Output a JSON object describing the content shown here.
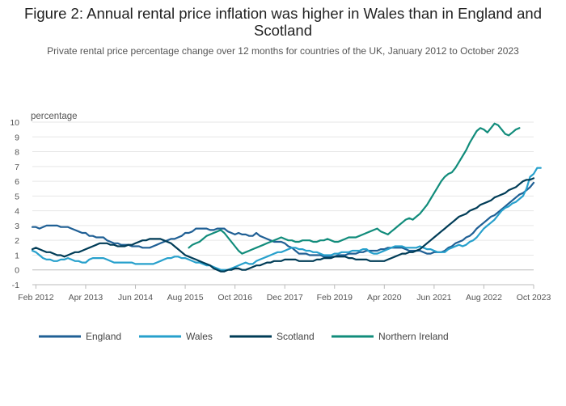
{
  "header": {
    "title": "Figure 2: Annual rental price inflation was higher in Wales than in England and Scotland",
    "subtitle": "Private rental price percentage change over 12 months for countries of the UK, January 2012 to October 2023"
  },
  "chart_data": {
    "type": "line",
    "title": "Figure 2: Annual rental price inflation was higher in Wales than in England and Scotland",
    "subtitle": "Private rental price percentage change over 12 months for countries of the UK, January 2012 to October 2023",
    "ylabel": "percentage",
    "xlabel": "",
    "ylim": [
      -1,
      10
    ],
    "yticks": [
      -1,
      0,
      1,
      2,
      3,
      4,
      5,
      6,
      7,
      8,
      9,
      10
    ],
    "xlim": [
      "2012-01",
      "2023-10"
    ],
    "xticks": [
      "Feb 2012",
      "Apr 2013",
      "Jun 2014",
      "Aug 2015",
      "Oct 2016",
      "Dec 2017",
      "Feb 2019",
      "Apr 2020",
      "Jun 2021",
      "Aug 2022",
      "Oct 2023"
    ],
    "grid": true,
    "legend_position": "bottom",
    "series": [
      {
        "name": "England",
        "color": "#206095",
        "start": "2012-01",
        "values": [
          2.9,
          2.9,
          2.8,
          2.9,
          3.0,
          3.0,
          3.0,
          3.0,
          2.9,
          2.9,
          2.9,
          2.8,
          2.7,
          2.6,
          2.5,
          2.5,
          2.3,
          2.3,
          2.2,
          2.2,
          2.2,
          2.0,
          1.9,
          1.8,
          1.8,
          1.7,
          1.7,
          1.7,
          1.6,
          1.6,
          1.6,
          1.5,
          1.5,
          1.5,
          1.6,
          1.7,
          1.8,
          1.9,
          2.0,
          2.1,
          2.1,
          2.2,
          2.3,
          2.5,
          2.5,
          2.6,
          2.8,
          2.8,
          2.8,
          2.8,
          2.7,
          2.7,
          2.8,
          2.8,
          2.8,
          2.6,
          2.5,
          2.4,
          2.5,
          2.4,
          2.4,
          2.3,
          2.3,
          2.5,
          2.3,
          2.2,
          2.1,
          2.0,
          1.9,
          1.9,
          1.9,
          1.8,
          1.6,
          1.5,
          1.3,
          1.1,
          1.1,
          1.1,
          1.0,
          1.0,
          1.0,
          1.0,
          0.9,
          0.9,
          0.9,
          0.9,
          1.0,
          1.0,
          1.0,
          1.1,
          1.1,
          1.1,
          1.2,
          1.2,
          1.3,
          1.3,
          1.3,
          1.3,
          1.4,
          1.4,
          1.5,
          1.5,
          1.5,
          1.5,
          1.5,
          1.4,
          1.3,
          1.3,
          1.3,
          1.3,
          1.2,
          1.1,
          1.1,
          1.2,
          1.2,
          1.2,
          1.3,
          1.5,
          1.6,
          1.8,
          1.9,
          2.0,
          2.2,
          2.3,
          2.5,
          2.8,
          3.0,
          3.2,
          3.4,
          3.6,
          3.7,
          3.9,
          4.1,
          4.3,
          4.5,
          4.7,
          4.9,
          5.1,
          5.2,
          5.4,
          5.6,
          5.9
        ]
      },
      {
        "name": "Wales",
        "color": "#27a0cc",
        "start": "2012-01",
        "values": [
          1.3,
          1.2,
          1.0,
          0.8,
          0.7,
          0.7,
          0.6,
          0.6,
          0.7,
          0.7,
          0.8,
          0.7,
          0.6,
          0.6,
          0.5,
          0.5,
          0.7,
          0.8,
          0.8,
          0.8,
          0.8,
          0.7,
          0.6,
          0.5,
          0.5,
          0.5,
          0.5,
          0.5,
          0.5,
          0.4,
          0.4,
          0.4,
          0.4,
          0.4,
          0.4,
          0.5,
          0.6,
          0.7,
          0.8,
          0.8,
          0.9,
          0.9,
          0.8,
          0.8,
          0.7,
          0.6,
          0.5,
          0.5,
          0.4,
          0.3,
          0.3,
          0.2,
          0.1,
          0.0,
          0.0,
          0.0,
          0.1,
          0.2,
          0.3,
          0.4,
          0.5,
          0.4,
          0.4,
          0.6,
          0.7,
          0.8,
          0.9,
          1.0,
          1.1,
          1.2,
          1.2,
          1.3,
          1.4,
          1.5,
          1.5,
          1.4,
          1.4,
          1.3,
          1.3,
          1.2,
          1.2,
          1.1,
          1.0,
          1.0,
          1.0,
          1.1,
          1.1,
          1.2,
          1.2,
          1.2,
          1.3,
          1.3,
          1.3,
          1.4,
          1.4,
          1.2,
          1.1,
          1.1,
          1.2,
          1.3,
          1.4,
          1.5,
          1.6,
          1.6,
          1.6,
          1.5,
          1.5,
          1.5,
          1.5,
          1.6,
          1.5,
          1.4,
          1.4,
          1.3,
          1.2,
          1.2,
          1.2,
          1.4,
          1.5,
          1.6,
          1.7,
          1.6,
          1.7,
          1.9,
          2.0,
          2.2,
          2.5,
          2.8,
          3.0,
          3.2,
          3.4,
          3.7,
          4.0,
          4.2,
          4.3,
          4.5,
          4.6,
          4.8,
          5.0,
          5.5,
          6.3,
          6.5,
          6.9,
          6.9
        ]
      },
      {
        "name": "Scotland",
        "color": "#003c57",
        "start": "2012-01",
        "values": [
          1.4,
          1.5,
          1.4,
          1.3,
          1.2,
          1.2,
          1.1,
          1.0,
          1.0,
          0.9,
          1.0,
          1.1,
          1.2,
          1.2,
          1.3,
          1.4,
          1.5,
          1.6,
          1.7,
          1.8,
          1.8,
          1.8,
          1.7,
          1.7,
          1.6,
          1.6,
          1.6,
          1.7,
          1.7,
          1.8,
          1.9,
          2.0,
          2.0,
          2.1,
          2.1,
          2.1,
          2.1,
          2.0,
          1.9,
          1.8,
          1.6,
          1.4,
          1.2,
          1.0,
          0.9,
          0.8,
          0.7,
          0.6,
          0.5,
          0.4,
          0.3,
          0.1,
          0.0,
          -0.1,
          -0.1,
          0.0,
          0.0,
          0.1,
          0.1,
          0.0,
          0.0,
          0.1,
          0.2,
          0.3,
          0.3,
          0.4,
          0.5,
          0.5,
          0.6,
          0.6,
          0.6,
          0.7,
          0.7,
          0.7,
          0.7,
          0.6,
          0.6,
          0.6,
          0.6,
          0.6,
          0.7,
          0.7,
          0.8,
          0.8,
          0.8,
          0.9,
          0.9,
          0.9,
          0.9,
          0.8,
          0.8,
          0.7,
          0.7,
          0.7,
          0.7,
          0.6,
          0.6,
          0.6,
          0.6,
          0.6,
          0.7,
          0.8,
          0.9,
          1.0,
          1.1,
          1.1,
          1.2,
          1.2,
          1.3,
          1.4,
          1.6,
          1.8,
          2.0,
          2.2,
          2.4,
          2.6,
          2.8,
          3.0,
          3.2,
          3.4,
          3.6,
          3.7,
          3.8,
          4.0,
          4.1,
          4.2,
          4.4,
          4.5,
          4.6,
          4.7,
          4.9,
          5.0,
          5.1,
          5.2,
          5.4,
          5.5,
          5.6,
          5.8,
          6.0,
          6.1,
          6.1,
          6.2
        ]
      },
      {
        "name": "Northern Ireland",
        "color": "#118c7b",
        "start": "2015-09",
        "values": [
          1.5,
          1.7,
          1.8,
          1.9,
          2.1,
          2.3,
          2.4,
          2.5,
          2.6,
          2.7,
          2.5,
          2.2,
          1.9,
          1.6,
          1.3,
          1.1,
          1.2,
          1.3,
          1.4,
          1.5,
          1.6,
          1.7,
          1.8,
          1.9,
          2.0,
          2.1,
          2.2,
          2.1,
          2.0,
          2.0,
          1.9,
          1.9,
          2.0,
          2.0,
          2.0,
          1.9,
          1.9,
          2.0,
          2.0,
          2.1,
          2.0,
          1.9,
          1.9,
          2.0,
          2.1,
          2.2,
          2.2,
          2.2,
          2.3,
          2.4,
          2.5,
          2.6,
          2.7,
          2.8,
          2.6,
          2.5,
          2.4,
          2.6,
          2.8,
          3.0,
          3.2,
          3.4,
          3.5,
          3.4,
          3.6,
          3.8,
          4.1,
          4.4,
          4.8,
          5.2,
          5.6,
          6.0,
          6.3,
          6.5,
          6.6,
          6.9,
          7.3,
          7.7,
          8.1,
          8.6,
          9.0,
          9.4,
          9.6,
          9.5,
          9.3,
          9.6,
          9.9,
          9.8,
          9.5,
          9.2,
          9.1,
          9.3,
          9.5,
          9.6
        ]
      }
    ]
  }
}
